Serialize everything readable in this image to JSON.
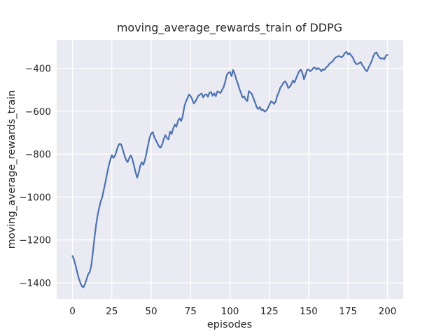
{
  "figure": {
    "title": "moving_average_rewards_train of DDPG",
    "xlabel": "episodes",
    "ylabel": "moving_average_rewards_train"
  },
  "chart_data": {
    "type": "line",
    "title": "moving_average_rewards_train of DDPG",
    "xlabel": "episodes",
    "ylabel": "moving_average_rewards_train",
    "legend": "none",
    "grid": true,
    "bg_color": "#EAEAF2",
    "grid_color": "#FFFFFF",
    "line_color": "#4C72B0",
    "text_color": "#262626",
    "xlim": [
      -10,
      210
    ],
    "ylim": [
      -1475,
      -268
    ],
    "xticks": [
      0,
      25,
      50,
      75,
      100,
      125,
      150,
      175,
      200
    ],
    "yticks": [
      -400,
      -600,
      -800,
      -1000,
      -1200,
      -1400
    ],
    "x": [
      0,
      1,
      2,
      3,
      4,
      5,
      6,
      7,
      8,
      9,
      10,
      11,
      12,
      13,
      14,
      15,
      16,
      17,
      18,
      19,
      20,
      21,
      22,
      23,
      24,
      25,
      26,
      27,
      28,
      29,
      30,
      31,
      32,
      33,
      34,
      35,
      36,
      37,
      38,
      39,
      40,
      41,
      42,
      43,
      44,
      45,
      46,
      47,
      48,
      49,
      50,
      51,
      52,
      53,
      54,
      55,
      56,
      57,
      58,
      59,
      60,
      61,
      62,
      63,
      64,
      65,
      66,
      67,
      68,
      69,
      70,
      71,
      72,
      73,
      74,
      75,
      76,
      77,
      78,
      79,
      80,
      81,
      82,
      83,
      84,
      85,
      86,
      87,
      88,
      89,
      90,
      91,
      92,
      93,
      94,
      95,
      96,
      97,
      98,
      99,
      100,
      101,
      102,
      103,
      104,
      105,
      106,
      107,
      108,
      109,
      110,
      111,
      112,
      113,
      114,
      115,
      116,
      117,
      118,
      119,
      120,
      121,
      122,
      123,
      124,
      125,
      126,
      127,
      128,
      129,
      130,
      131,
      132,
      133,
      134,
      135,
      136,
      137,
      138,
      139,
      140,
      141,
      142,
      143,
      144,
      145,
      146,
      147,
      148,
      149,
      150,
      151,
      152,
      153,
      154,
      155,
      156,
      157,
      158,
      159,
      160,
      161,
      162,
      163,
      164,
      165,
      166,
      167,
      168,
      169,
      170,
      171,
      172,
      173,
      174,
      175,
      176,
      177,
      178,
      179,
      180,
      181,
      182,
      183,
      184,
      185,
      186,
      187,
      188,
      189,
      190,
      191,
      192,
      193,
      194,
      195,
      196,
      197,
      198,
      199,
      200
    ],
    "y": [
      -1275,
      -1292,
      -1320,
      -1350,
      -1378,
      -1400,
      -1416,
      -1421,
      -1405,
      -1383,
      -1360,
      -1350,
      -1318,
      -1255,
      -1190,
      -1130,
      -1085,
      -1048,
      -1020,
      -998,
      -963,
      -928,
      -890,
      -855,
      -828,
      -805,
      -818,
      -808,
      -785,
      -762,
      -752,
      -756,
      -780,
      -806,
      -826,
      -838,
      -820,
      -806,
      -822,
      -852,
      -882,
      -910,
      -888,
      -856,
      -838,
      -850,
      -828,
      -795,
      -758,
      -724,
      -704,
      -698,
      -722,
      -736,
      -750,
      -766,
      -770,
      -754,
      -730,
      -712,
      -726,
      -732,
      -695,
      -706,
      -680,
      -662,
      -673,
      -645,
      -634,
      -646,
      -624,
      -580,
      -556,
      -540,
      -522,
      -530,
      -545,
      -564,
      -556,
      -541,
      -528,
      -522,
      -518,
      -536,
      -524,
      -521,
      -533,
      -514,
      -511,
      -528,
      -517,
      -531,
      -508,
      -511,
      -516,
      -501,
      -488,
      -462,
      -432,
      -421,
      -418,
      -437,
      -408,
      -426,
      -452,
      -472,
      -496,
      -516,
      -536,
      -531,
      -546,
      -553,
      -507,
      -513,
      -521,
      -541,
      -561,
      -582,
      -590,
      -581,
      -596,
      -593,
      -602,
      -598,
      -587,
      -571,
      -554,
      -558,
      -566,
      -556,
      -529,
      -512,
      -490,
      -481,
      -467,
      -461,
      -472,
      -492,
      -487,
      -474,
      -457,
      -467,
      -447,
      -429,
      -414,
      -406,
      -423,
      -452,
      -430,
      -407,
      -406,
      -414,
      -408,
      -398,
      -397,
      -406,
      -399,
      -404,
      -414,
      -404,
      -408,
      -397,
      -391,
      -381,
      -374,
      -370,
      -359,
      -350,
      -347,
      -343,
      -346,
      -349,
      -341,
      -329,
      -323,
      -336,
      -331,
      -341,
      -350,
      -368,
      -380,
      -381,
      -376,
      -371,
      -385,
      -396,
      -408,
      -414,
      -397,
      -382,
      -367,
      -344,
      -331,
      -326,
      -340,
      -351,
      -356,
      -353,
      -358,
      -342,
      -337
    ]
  }
}
